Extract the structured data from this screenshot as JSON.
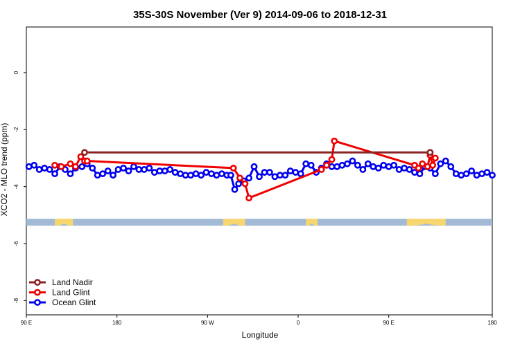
{
  "chart_data": {
    "type": "line",
    "title": "35S-30S November (Ver 9)   2014-09-06 to 2018-12-31",
    "xlabel": "Longitude",
    "ylabel": "XCO2 - MLO trend (ppm)",
    "xlim": [
      90,
      450
    ],
    "ylim": [
      -8.5,
      1.6
    ],
    "x_ticks": [
      {
        "value": 90,
        "label": "90 E"
      },
      {
        "value": 160,
        "label": "180"
      },
      {
        "value": 230,
        "label": "90 W"
      },
      {
        "value": 300,
        "label": "0"
      },
      {
        "value": 370,
        "label": "90 E"
      },
      {
        "value": 450,
        "label": "180"
      }
    ],
    "y_ticks": [
      {
        "value": 0,
        "label": "0"
      },
      {
        "value": -2,
        "label": "-2"
      },
      {
        "value": -4,
        "label": "-4"
      },
      {
        "value": -6,
        "label": "-6"
      },
      {
        "value": -8,
        "label": "-8"
      }
    ],
    "land_mask": {
      "y": -5.25,
      "ocean_color": "#a2bad6",
      "land_color": "#f8d66f",
      "land_segments": [
        [
          112,
          126
        ],
        [
          242,
          259
        ],
        [
          306,
          315
        ],
        [
          384,
          414
        ]
      ]
    },
    "legend": {
      "position": "bottom-left"
    },
    "series": [
      {
        "name": "Land Nadir",
        "color": "#8b2323",
        "x": [
          135,
          402
        ],
        "y": [
          -2.8,
          -2.8
        ]
      },
      {
        "name": "Land Glint",
        "color": "#ee0000",
        "x": [
          112,
          117,
          124,
          128,
          132,
          135,
          137,
          250,
          255,
          259,
          262,
          318,
          322,
          326,
          328,
          390,
          393,
          396,
          400,
          402,
          404,
          406
        ],
        "y": [
          -3.25,
          -3.3,
          -3.2,
          -3.3,
          -2.95,
          -3.1,
          -3.1,
          -3.35,
          -3.7,
          -3.9,
          -4.4,
          -3.4,
          -3.25,
          -3.05,
          -2.4,
          -3.25,
          -3.35,
          -3.2,
          -3.3,
          -2.9,
          -3.25,
          -3.0
        ]
      },
      {
        "name": "Ocean Glint",
        "color": "#0000ee",
        "x": [
          92,
          96,
          100,
          104,
          108,
          112,
          116,
          120,
          124,
          128,
          133,
          137,
          141,
          145,
          149,
          153,
          157,
          161,
          165,
          169,
          173,
          177,
          181,
          185,
          189,
          193,
          197,
          201,
          205,
          209,
          213,
          217,
          221,
          225,
          229,
          233,
          237,
          241,
          245,
          248,
          251,
          254,
          258,
          262,
          266,
          270,
          274,
          278,
          282,
          286,
          290,
          294,
          298,
          302,
          306,
          310,
          314,
          318,
          322,
          326,
          330,
          334,
          338,
          342,
          346,
          350,
          354,
          358,
          362,
          366,
          370,
          374,
          378,
          382,
          386,
          390,
          394,
          398,
          402,
          406,
          410,
          414,
          418,
          422,
          426,
          430,
          434,
          438,
          442,
          446,
          450
        ],
        "y": [
          -3.3,
          -3.25,
          -3.4,
          -3.35,
          -3.4,
          -3.55,
          -3.3,
          -3.4,
          -3.55,
          -3.35,
          -3.3,
          -3.2,
          -3.35,
          -3.6,
          -3.55,
          -3.45,
          -3.6,
          -3.4,
          -3.35,
          -3.45,
          -3.3,
          -3.4,
          -3.4,
          -3.35,
          -3.5,
          -3.45,
          -3.45,
          -3.4,
          -3.5,
          -3.55,
          -3.6,
          -3.6,
          -3.55,
          -3.6,
          -3.5,
          -3.55,
          -3.6,
          -3.55,
          -3.6,
          -3.6,
          -4.1,
          -3.9,
          -3.8,
          -3.7,
          -3.3,
          -3.65,
          -3.5,
          -3.5,
          -3.65,
          -3.6,
          -3.6,
          -3.45,
          -3.5,
          -3.55,
          -3.2,
          -3.25,
          -3.5,
          -3.35,
          -3.2,
          -3.3,
          -3.3,
          -3.25,
          -3.2,
          -3.1,
          -3.25,
          -3.4,
          -3.2,
          -3.3,
          -3.35,
          -3.25,
          -3.3,
          -3.25,
          -3.4,
          -3.35,
          -3.4,
          -3.5,
          -3.55,
          -3.3,
          -3.35,
          -3.55,
          -3.2,
          -3.1,
          -3.3,
          -3.55,
          -3.6,
          -3.55,
          -3.45,
          -3.6,
          -3.55,
          -3.5,
          -3.6
        ]
      }
    ]
  }
}
